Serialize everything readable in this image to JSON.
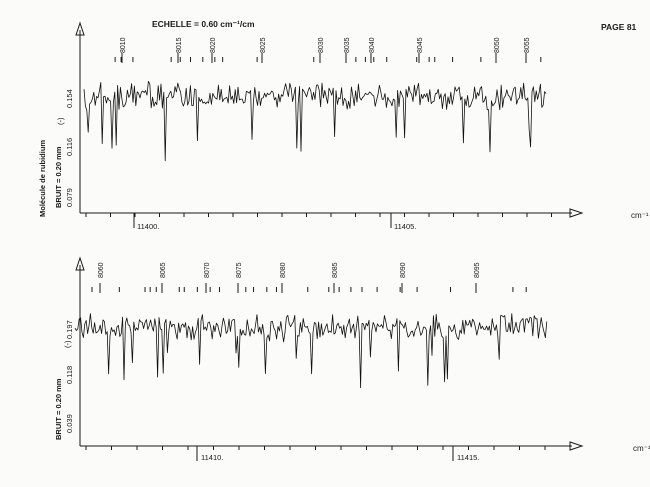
{
  "header": {
    "scale": "ECHELLE = 0.60 cm⁻¹/cm",
    "page": "PAGE 81"
  },
  "side_labels": {
    "molecule": "Molécule de rubidium",
    "noise_top": "BRUIT = 0.20 mm",
    "noise_bottom": "BRUIT = 0.20 mm",
    "marker": "(-)"
  },
  "unit": "cm⁻¹",
  "chart_data": [
    {
      "type": "line",
      "x_ticks": [
        "11400.",
        "11405."
      ],
      "y_ticks": [
        "0.079",
        "0.116",
        "0.154"
      ],
      "peak_labels": [
        "8010",
        "8015",
        "8020",
        "8025",
        "8030",
        "8035",
        "8040",
        "8045",
        "8050",
        "8055"
      ],
      "xlabel": "cm⁻¹",
      "grid": false
    },
    {
      "type": "line",
      "x_ticks": [
        "11410.",
        "11415."
      ],
      "y_ticks": [
        "0.039",
        "0.118",
        "0.197"
      ],
      "peak_labels": [
        "8060",
        "8065",
        "8070",
        "8075",
        "8080",
        "8085",
        "8090",
        "8095"
      ],
      "xlabel": "cm⁻¹",
      "grid": false
    }
  ]
}
